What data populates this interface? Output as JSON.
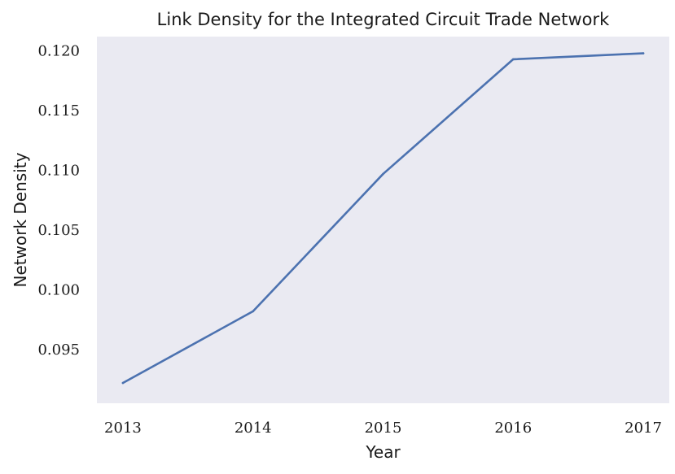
{
  "chart_data": {
    "type": "line",
    "title": "Link Density for the Integrated Circuit Trade Network",
    "xlabel": "Year",
    "ylabel": "Network Density",
    "x": [
      2013,
      2014,
      2015,
      2016,
      2017
    ],
    "x_tick_labels": [
      "2013",
      "2014",
      "2015",
      "2016",
      "2017"
    ],
    "y_ticks": [
      0.095,
      0.1,
      0.105,
      0.11,
      0.115,
      0.12
    ],
    "y_tick_labels": [
      "0.095",
      "0.100",
      "0.105",
      "0.110",
      "0.115",
      "0.120"
    ],
    "ylim": [
      0.0905,
      0.1212
    ],
    "xlim": [
      2012.8,
      2017.2
    ],
    "grid": false,
    "series": [
      {
        "values": [
          0.0922,
          0.0982,
          0.1097,
          0.1193,
          0.1198
        ],
        "color": "#4c72b0"
      }
    ],
    "background_color": "#eaeaf2"
  }
}
